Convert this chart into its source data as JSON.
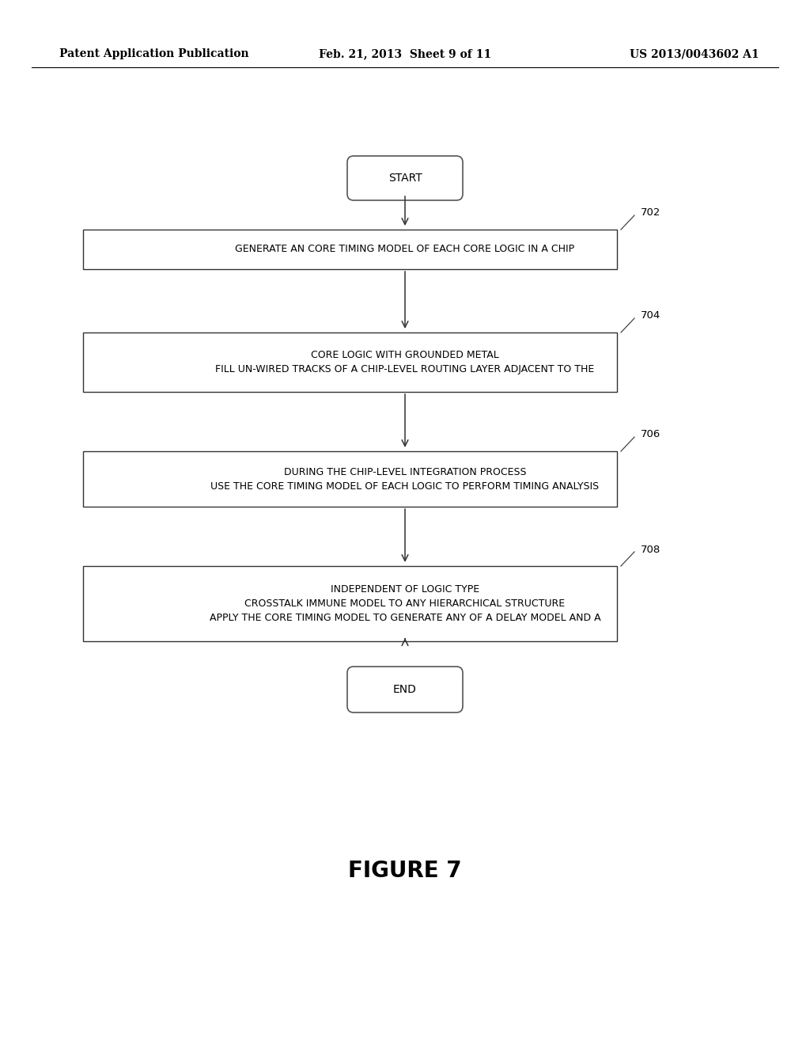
{
  "bg_color": "#ffffff",
  "header_left": "Patent Application Publication",
  "header_mid": "Feb. 21, 2013  Sheet 9 of 11",
  "header_right": "US 2013/0043602 A1",
  "header_fontsize": 10,
  "figure_label": "FIGURE 7",
  "figure_label_fontsize": 20,
  "start_text": "START",
  "end_text": "END",
  "boxes": [
    {
      "label": "702",
      "lines": [
        "GENERATE AN CORE TIMING MODEL OF EACH CORE LOGIC IN A CHIP"
      ]
    },
    {
      "label": "704",
      "lines": [
        "FILL UN-WIRED TRACKS OF A CHIP-LEVEL ROUTING LAYER ADJACENT TO THE",
        "CORE LOGIC WITH GROUNDED METAL"
      ]
    },
    {
      "label": "706",
      "lines": [
        "USE THE CORE TIMING MODEL OF EACH LOGIC TO PERFORM TIMING ANALYSIS",
        "DURING THE CHIP-LEVEL INTEGRATION PROCESS"
      ]
    },
    {
      "label": "708",
      "lines": [
        "APPLY THE CORE TIMING MODEL TO GENERATE ANY OF A DELAY MODEL AND A",
        "CROSSTALK IMMUNE MODEL TO ANY HIERARCHICAL STRUCTURE",
        "INDEPENDENT OF LOGIC TYPE"
      ]
    }
  ],
  "text_fontsize": 9.0,
  "label_fontsize": 9.5
}
